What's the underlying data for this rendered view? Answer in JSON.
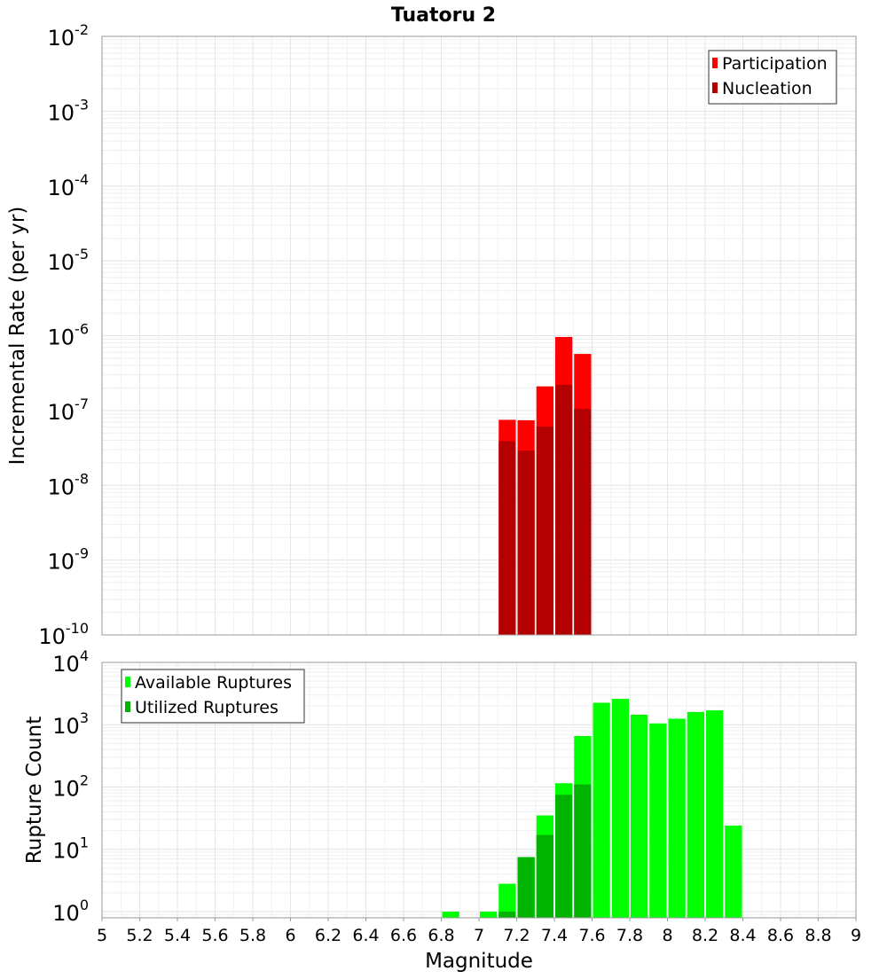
{
  "title": "Tuatoru 2",
  "chart_data": [
    {
      "type": "bar",
      "panel": "top",
      "ylabel": "Incremental Rate (per yr)",
      "yscale": "log",
      "ylim_exp": [
        -10,
        -2
      ],
      "legend_position": "top-right",
      "legend": [
        {
          "label": "Participation",
          "color": "#ff0000"
        },
        {
          "label": "Nucleation",
          "color": "#b30000"
        }
      ],
      "bin_width": 0.1,
      "series": [
        {
          "name": "Participation",
          "color": "#ff0000",
          "x": [
            7.15,
            7.25,
            7.35,
            7.45,
            7.55
          ],
          "values": [
            7.5e-08,
            7.4e-08,
            2.1e-07,
            9.6e-07,
            5.7e-07
          ]
        },
        {
          "name": "Nucleation",
          "color": "#b30000",
          "x": [
            7.15,
            7.25,
            7.35,
            7.45,
            7.55
          ],
          "values": [
            3.9e-08,
            2.9e-08,
            6.1e-08,
            2.2e-07,
            1.05e-07
          ]
        }
      ]
    },
    {
      "type": "bar",
      "panel": "bottom",
      "ylabel": "Rupture Count",
      "xlabel": "Magnitude",
      "yscale": "log",
      "ylim_exp": [
        -0.1,
        4
      ],
      "legend_position": "top-left",
      "legend": [
        {
          "label": "Available Ruptures",
          "color": "#00ff00"
        },
        {
          "label": "Utilized Ruptures",
          "color": "#00b300"
        }
      ],
      "bin_width": 0.1,
      "series": [
        {
          "name": "Available Ruptures",
          "color": "#00ff00",
          "x": [
            6.85,
            7.05,
            7.15,
            7.25,
            7.35,
            7.45,
            7.55,
            7.65,
            7.75,
            7.85,
            7.95,
            8.05,
            8.15,
            8.25,
            8.35
          ],
          "values": [
            1,
            1,
            2.8,
            7.5,
            35,
            115,
            660,
            2250,
            2600,
            1450,
            1050,
            1250,
            1600,
            1700,
            24
          ]
        },
        {
          "name": "Utilized Ruptures",
          "color": "#00b300",
          "x": [
            7.15,
            7.25,
            7.35,
            7.45,
            7.55
          ],
          "values": [
            1,
            7.5,
            17,
            75,
            110
          ]
        }
      ]
    }
  ],
  "x_axis": {
    "min": 5,
    "max": 9,
    "ticks": [
      "5",
      "5.2",
      "5.4",
      "5.6",
      "5.8",
      "6",
      "6.2",
      "6.4",
      "6.6",
      "6.8",
      "7",
      "7.2",
      "7.4",
      "7.6",
      "7.8",
      "8",
      "8.2",
      "8.4",
      "8.6",
      "8.8",
      "9"
    ]
  },
  "top_y_ticks": [
    "-2",
    "-3",
    "-4",
    "-5",
    "-6",
    "-7",
    "-8",
    "-9",
    "-10"
  ],
  "bottom_y_ticks": [
    "4",
    "3",
    "2",
    "1",
    "0"
  ]
}
